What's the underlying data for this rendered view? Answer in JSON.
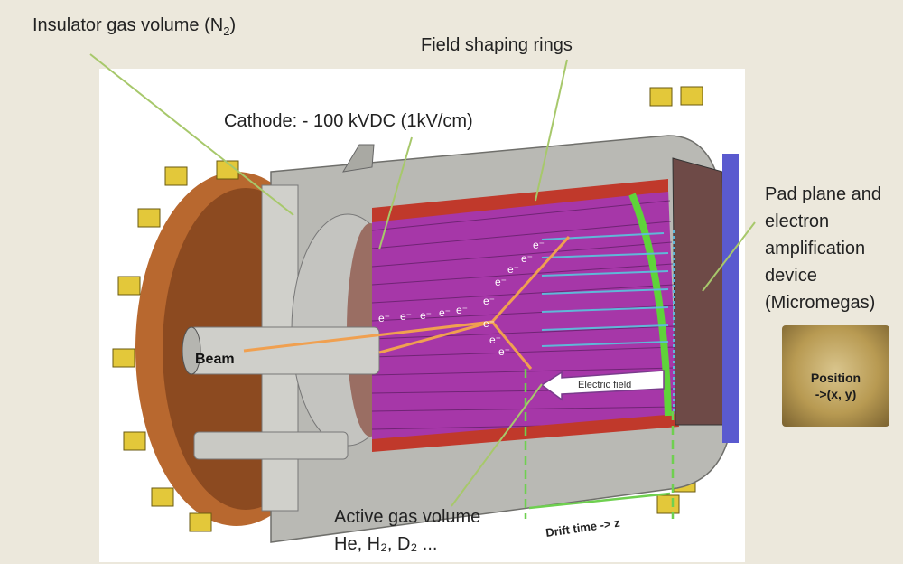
{
  "labels": {
    "insulator": "Insulator gas volume (N",
    "insulator_sub": "2",
    "insulator_close": ")",
    "field_rings": "Field shaping rings",
    "cathode": "Cathode: - 100 kVDC (1kV/cm)",
    "pad_plane": [
      "Pad plane and",
      "electron",
      "amplification",
      "device",
      "(Micromegas)"
    ],
    "beam": "Beam",
    "electric_field": "Electric field",
    "active_gas": "Active gas volume",
    "gases": "He, H₂, D₂ ...",
    "drift": "Drift time -> z",
    "position": [
      "Position",
      "->(x, y)"
    ],
    "electron": "e⁻"
  },
  "colors": {
    "background": "#ece8dc",
    "copper": "#b8682f",
    "steel": "#b9b9b4",
    "magenta_rings": "#a637a8",
    "green_ring": "#5fd33a",
    "red_rings": "#c0392b",
    "arrow_orange": "#f0a050",
    "arrow_cyan": "#5fb8d8",
    "pointer_green": "#a7c86b",
    "anode_blue": "#5a5acf",
    "yellow_clamp": "#e3c83a"
  }
}
